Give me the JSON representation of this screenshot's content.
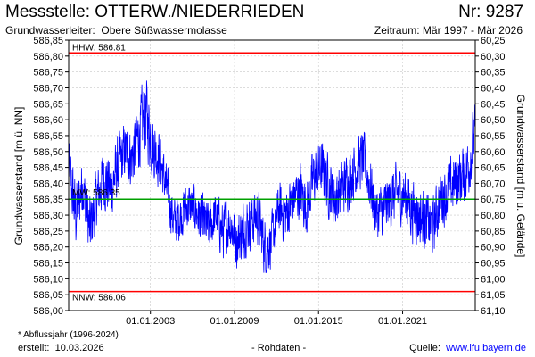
{
  "header": {
    "title": "Messstelle: OTTERW./NIEDERRIEDEN",
    "nr": "Nr: 9287",
    "aquifer_label": "Grundwasserleiter:",
    "aquifer_value": "Obere Süßwassermolasse",
    "period": "Zeitraum: Mär 1997 - Mär 2026"
  },
  "footer": {
    "footnote": "* Abflussjahr (1996-2024)",
    "created_label": "erstellt:",
    "created_date": "10.03.2026",
    "rawdata": "- Rohdaten -",
    "source_label": "Quelle:",
    "source_link": "www.lfu.bayern.de"
  },
  "colors": {
    "series": "#0000ff",
    "hhw_nnw": "#ff0000",
    "mw": "#00a000",
    "grid": "#c8c8c8",
    "axis": "#000000"
  },
  "chart_data": {
    "type": "line",
    "ylabel": "Grundwasserstand [m ü. NN]",
    "y2label": "Grundwasserstand [m u. Gelände]",
    "ylim": [
      586.0,
      586.85
    ],
    "y2lim": [
      61.1,
      60.25
    ],
    "yticks": [
      "586,00",
      "586,05",
      "586,10",
      "586,15",
      "586,20",
      "586,25",
      "586,30",
      "586,35",
      "586,40",
      "586,45",
      "586,50",
      "586,55",
      "586,60",
      "586,65",
      "586,70",
      "586,75",
      "586,80",
      "586,85"
    ],
    "y2ticks": [
      "61,10",
      "61,05",
      "61,00",
      "60,95",
      "60,90",
      "60,85",
      "60,80",
      "60,75",
      "60,70",
      "60,65",
      "60,60",
      "60,55",
      "60,50",
      "60,45",
      "60,40",
      "60,35",
      "60,30",
      "60,25"
    ],
    "xlim": [
      "1997-03-01",
      "2026-03-10"
    ],
    "xticks": [
      {
        "date": "2003-01-01",
        "label": "01.01.2003"
      },
      {
        "date": "2009-01-01",
        "label": "01.01.2009"
      },
      {
        "date": "2015-01-01",
        "label": "01.01.2015"
      },
      {
        "date": "2021-01-01",
        "label": "01.01.2021"
      }
    ],
    "grid": true,
    "reference_lines": [
      {
        "label": "HHW: 586.81",
        "value": 586.81
      },
      {
        "label": "MW: 586.35",
        "value": 586.35
      },
      {
        "label": "NNW: 586.06",
        "value": 586.06
      }
    ],
    "series": [
      {
        "x": [
          "1997-03-01",
          "1997-09-01",
          "1998-03-01",
          "1998-09-01",
          "1999-03-01",
          "1999-09-01",
          "2000-03-01",
          "2000-09-01",
          "2001-03-01",
          "2001-09-01",
          "2002-03-01",
          "2002-09-01",
          "2003-03-01",
          "2003-09-01",
          "2004-03-01",
          "2004-09-01",
          "2005-03-01",
          "2005-09-01",
          "2006-03-01",
          "2006-09-01",
          "2007-03-01",
          "2007-09-01",
          "2008-03-01",
          "2008-09-01",
          "2009-03-01",
          "2009-09-01",
          "2010-03-01",
          "2010-09-01",
          "2011-03-01",
          "2011-09-01",
          "2012-03-01",
          "2012-09-01",
          "2013-03-01",
          "2013-09-01",
          "2014-03-01",
          "2014-09-01",
          "2015-03-01",
          "2015-09-01",
          "2016-03-01",
          "2016-09-01",
          "2017-03-01",
          "2017-09-01",
          "2018-03-01",
          "2018-09-01",
          "2019-03-01",
          "2019-09-01",
          "2020-03-01",
          "2020-09-01",
          "2021-03-01",
          "2021-09-01",
          "2022-03-01",
          "2022-09-01",
          "2023-03-01",
          "2023-09-01",
          "2024-03-01",
          "2024-09-01",
          "2025-03-01",
          "2025-09-01",
          "2026-03-01"
        ],
        "y": [
          586.45,
          586.3,
          586.4,
          586.25,
          586.35,
          586.42,
          586.38,
          586.45,
          586.5,
          586.48,
          586.55,
          586.62,
          586.52,
          586.48,
          586.38,
          586.28,
          586.3,
          586.33,
          586.32,
          586.28,
          586.26,
          586.3,
          586.25,
          586.28,
          586.22,
          586.26,
          586.28,
          586.3,
          586.2,
          586.22,
          586.32,
          586.3,
          586.35,
          586.38,
          586.33,
          586.42,
          586.45,
          586.4,
          586.35,
          586.38,
          586.42,
          586.45,
          586.48,
          586.4,
          586.3,
          586.32,
          586.35,
          586.37,
          586.36,
          586.32,
          586.3,
          586.28,
          586.26,
          586.35,
          586.37,
          586.4,
          586.42,
          586.45,
          586.55
        ],
        "band": [
          0.13,
          0.15,
          0.12,
          0.14,
          0.12,
          0.13,
          0.13,
          0.13,
          0.12,
          0.13,
          0.14,
          0.17,
          0.14,
          0.12,
          0.1,
          0.1,
          0.1,
          0.1,
          0.1,
          0.11,
          0.11,
          0.1,
          0.12,
          0.11,
          0.12,
          0.12,
          0.11,
          0.12,
          0.12,
          0.11,
          0.11,
          0.12,
          0.11,
          0.12,
          0.12,
          0.12,
          0.12,
          0.13,
          0.12,
          0.12,
          0.12,
          0.12,
          0.12,
          0.12,
          0.11,
          0.12,
          0.12,
          0.12,
          0.12,
          0.13,
          0.13,
          0.12,
          0.12,
          0.12,
          0.12,
          0.12,
          0.12,
          0.13,
          0.13
        ]
      }
    ]
  }
}
